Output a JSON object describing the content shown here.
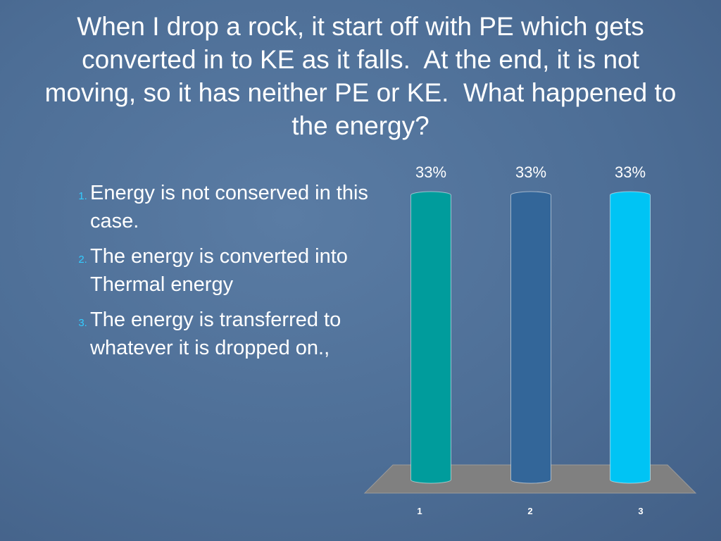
{
  "title": "When I drop a rock, it start off with PE which gets converted in to KE as it falls.  At the end, it is not moving, so it has neither PE or KE.  What happened to the energy?",
  "list": [
    "Energy is not conserved in this case.",
    "The energy is converted into Thermal energy",
    "The energy is transferred to whatever it is dropped on.,"
  ],
  "chart_data": {
    "type": "bar",
    "categories": [
      "1",
      "2",
      "3"
    ],
    "values": [
      33,
      33,
      33
    ],
    "value_labels": [
      "33%",
      "33%",
      "33%"
    ],
    "colors": [
      "#009c9c",
      "#336699",
      "#00c4f4"
    ]
  }
}
